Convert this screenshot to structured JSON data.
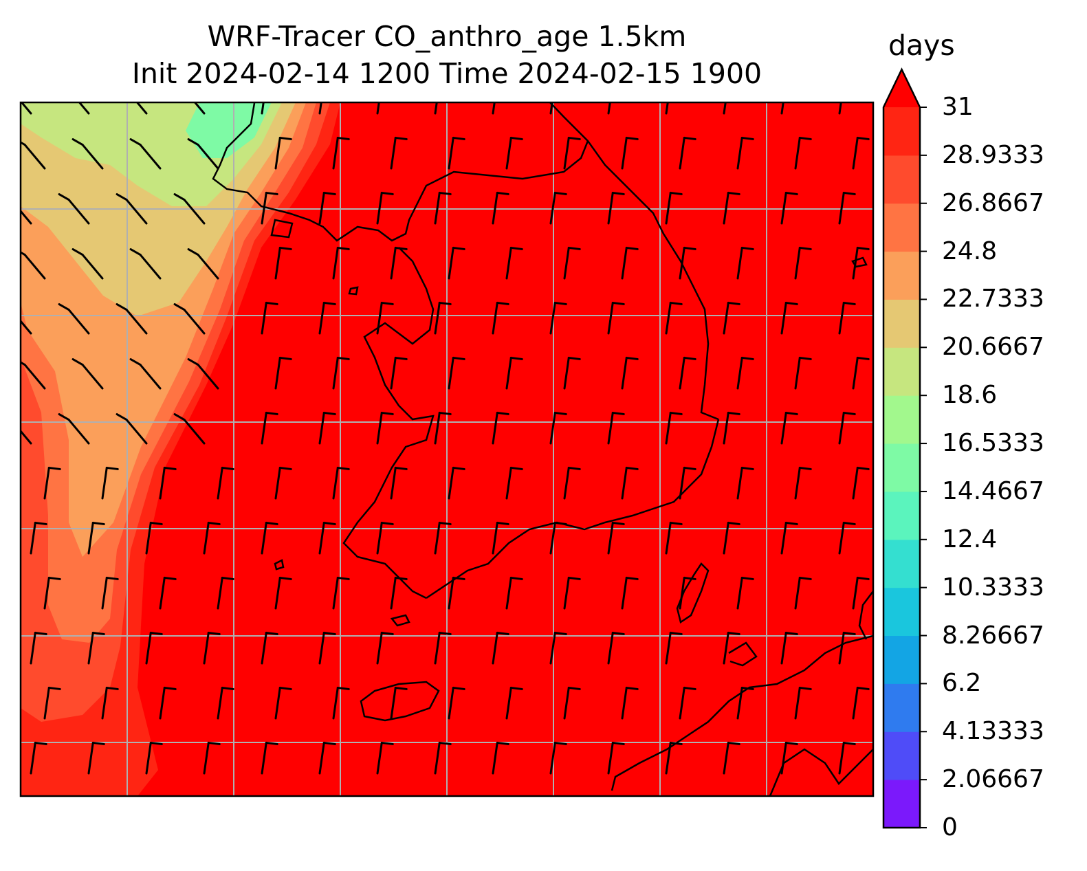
{
  "title": {
    "line1": "WRF-Tracer CO_anthro_age 1.5km",
    "line2": "Init 2024-02-14 1200 Time 2024-02-15 1900"
  },
  "colorbar": {
    "unit": "days",
    "ticks": [
      "31",
      "28.9333",
      "26.8667",
      "24.8",
      "22.7333",
      "20.6667",
      "18.6",
      "16.5333",
      "14.4667",
      "12.4",
      "10.3333",
      "8.26667",
      "6.2",
      "4.13333",
      "2.06667",
      "0"
    ],
    "colors": [
      "#7b19fb",
      "#4f4cf8",
      "#2f7bef",
      "#13a5e4",
      "#1ac6dd",
      "#34dfd0",
      "#5bf4bd",
      "#7efaa5",
      "#a2f88d",
      "#c6e67f",
      "#e5c873",
      "#fb9f5a",
      "#ff7443",
      "#ff4b2d",
      "#ff2513"
    ],
    "extend_color": "#ff0000"
  },
  "map_colors": {
    "background": "#ff0000",
    "aged_band_outer": "#ff2513",
    "aged_band_mid": "#ff4b2d",
    "aged_band_inner": "#ff7443",
    "young_outer": "#fb9f5a",
    "young_mid": "#e5c873",
    "young_inner": "#c6e67f",
    "youngest": "#7efaa5",
    "gridline": "#b0b0b0",
    "coastline": "#000000"
  }
}
